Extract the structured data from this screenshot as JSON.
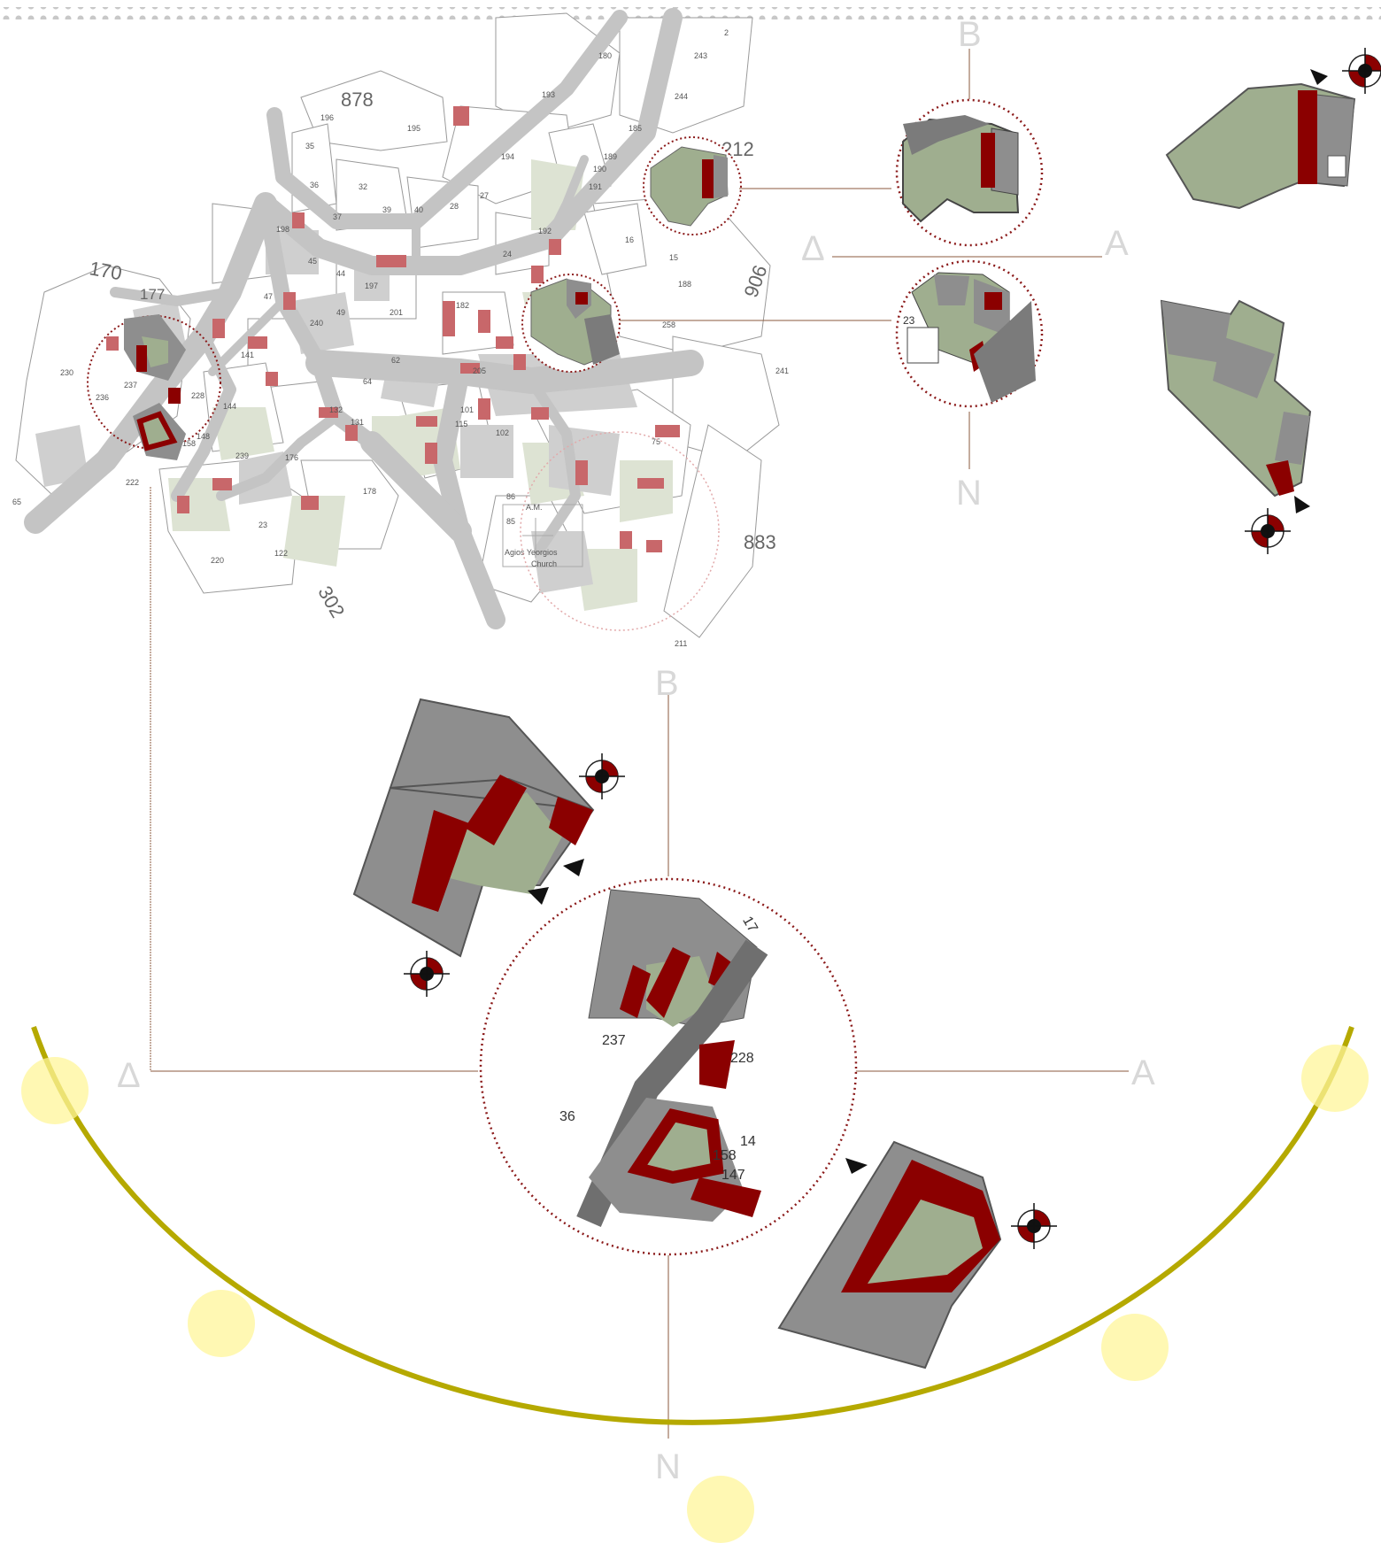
{
  "colors": {
    "building": "#8b0000",
    "courtyard": "#9fae8f",
    "built_gray": "#8e8e8e",
    "road_gray": "#b3b3b3",
    "callout": "#8b1a1a",
    "arc": "#b5a900",
    "sun": "#fff59a",
    "compass_letter": "#d6d6d6"
  },
  "map": {
    "plot_numbers_large": [
      "878",
      "170",
      "177",
      "212",
      "906",
      "883",
      "302"
    ],
    "plot_numbers_small": [
      "180",
      "243",
      "2",
      "193",
      "244",
      "196",
      "195",
      "185",
      "35",
      "194",
      "189",
      "190",
      "191",
      "36",
      "32",
      "27",
      "39",
      "40",
      "28",
      "37",
      "198",
      "16",
      "192",
      "15",
      "188",
      "45",
      "44",
      "24",
      "197",
      "47",
      "201",
      "240",
      "49",
      "182",
      "258",
      "230",
      "237",
      "228",
      "236",
      "62",
      "205",
      "241",
      "64",
      "131",
      "132",
      "101",
      "115",
      "102",
      "144",
      "75",
      "148",
      "158",
      "239",
      "176",
      "222",
      "141",
      "178",
      "86",
      "85",
      "23",
      "122",
      "220",
      "211",
      "A.M.",
      "Agios Yeorgios",
      "Church",
      "65"
    ]
  },
  "compass_upper": {
    "north": "B",
    "east": "A",
    "south": "N",
    "west": "Δ"
  },
  "compass_lower": {
    "north": "B",
    "east": "A",
    "south": "N",
    "west": "Δ"
  },
  "zoom_upper_a": {
    "labels": []
  },
  "zoom_upper_b": {
    "labels": [
      "23"
    ]
  },
  "zoom_lower": {
    "labels": [
      "17",
      "237",
      "228",
      "36",
      "158",
      "147",
      "14"
    ]
  }
}
